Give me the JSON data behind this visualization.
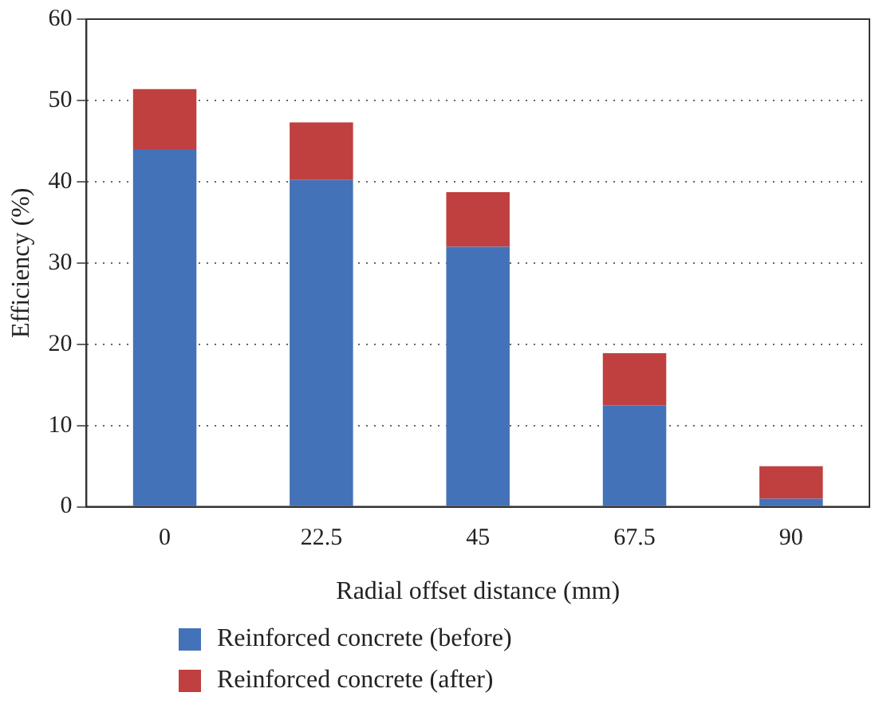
{
  "chart_data": {
    "type": "bar",
    "stacked": true,
    "xlabel": "Radial offset distance (mm)",
    "ylabel": "Efficiency (%)",
    "categories": [
      "0",
      "22.5",
      "45",
      "67.5",
      "90"
    ],
    "series": [
      {
        "name": "Reinforced concrete (before)",
        "color": "#4472b8",
        "values": [
          44,
          40.2,
          32,
          12.5,
          1
        ]
      },
      {
        "name": "Reinforced concrete (after)",
        "color": "#c0403f",
        "values": [
          7.4,
          7.1,
          6.7,
          6.4,
          4
        ]
      }
    ],
    "ylim": [
      0,
      60
    ],
    "yticks": [
      0,
      10,
      20,
      30,
      40,
      50,
      60
    ],
    "grid": "y",
    "legend": "bottom"
  }
}
